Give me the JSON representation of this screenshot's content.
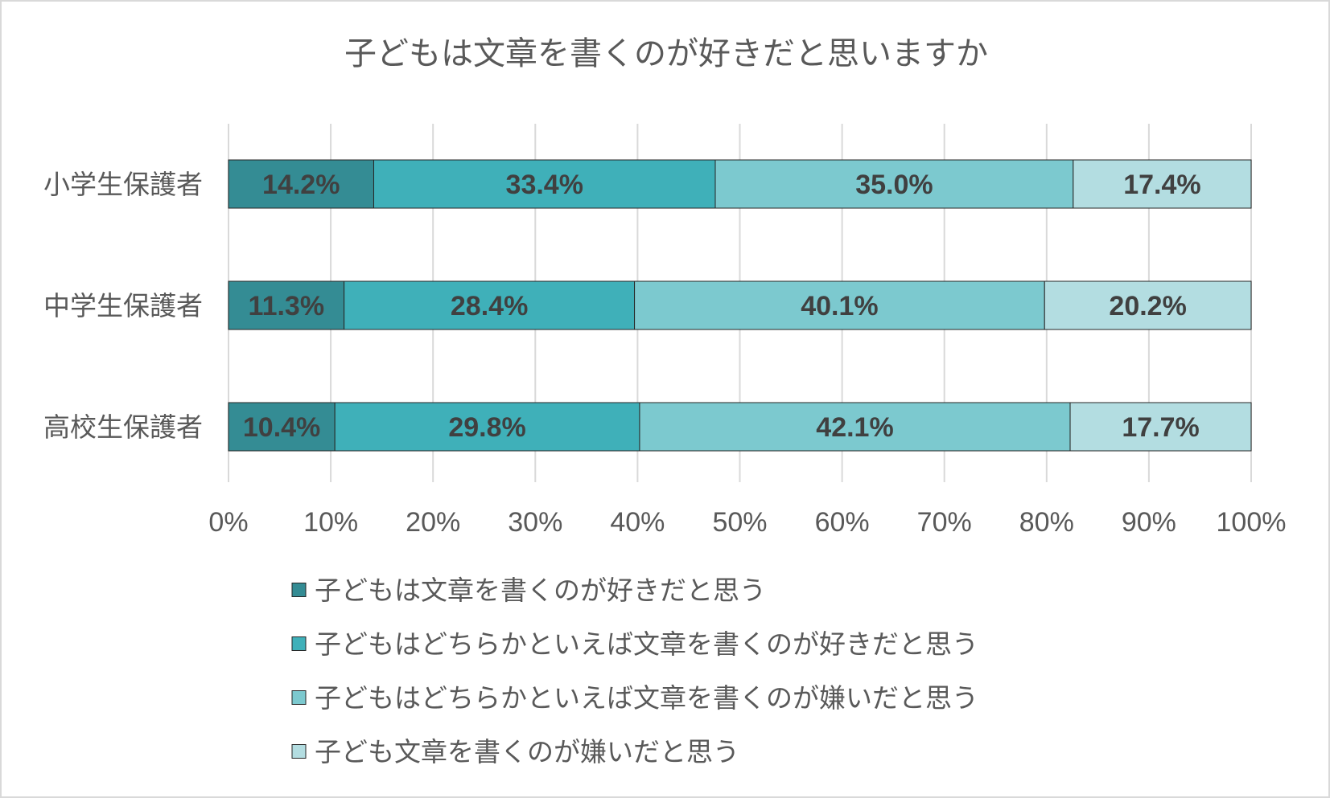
{
  "chart_data": {
    "type": "bar",
    "orientation": "horizontal",
    "stacked": "percent",
    "title": "子どもは文章を書くのが好きだと思いますか",
    "categories": [
      "小学生保護者",
      "中学生保護者",
      "高校生保護者"
    ],
    "series": [
      {
        "name": "子どもは文章を書くのが好きだと思う",
        "values": [
          14.2,
          11.3,
          10.4
        ],
        "labels": [
          "14.2%",
          "11.3%",
          "10.4%"
        ],
        "color": "#348c94"
      },
      {
        "name": "子どもはどちらかといえば文章を書くのが好きだと思う",
        "values": [
          33.4,
          28.4,
          29.8
        ],
        "labels": [
          "33.4%",
          "28.4%",
          "29.8%"
        ],
        "color": "#3fb0b9"
      },
      {
        "name": "子どもはどちらかといえば文章を書くのが嫌いだと思う",
        "values": [
          35.0,
          40.1,
          42.1
        ],
        "labels": [
          "35.0%",
          "40.1%",
          "42.1%"
        ],
        "color": "#7cc9cf"
      },
      {
        "name": "子ども文章を書くのが嫌いだと思う",
        "values": [
          17.4,
          20.2,
          17.7
        ],
        "labels": [
          "17.4%",
          "20.2%",
          "17.7%"
        ],
        "color": "#b3dde1"
      }
    ],
    "xlim": [
      0,
      100
    ],
    "x_ticks": [
      0,
      10,
      20,
      30,
      40,
      50,
      60,
      70,
      80,
      90,
      100
    ],
    "x_tick_labels": [
      "0%",
      "10%",
      "20%",
      "30%",
      "40%",
      "50%",
      "60%",
      "70%",
      "80%",
      "90%",
      "100%"
    ],
    "grid": true,
    "legend_position": "bottom"
  }
}
